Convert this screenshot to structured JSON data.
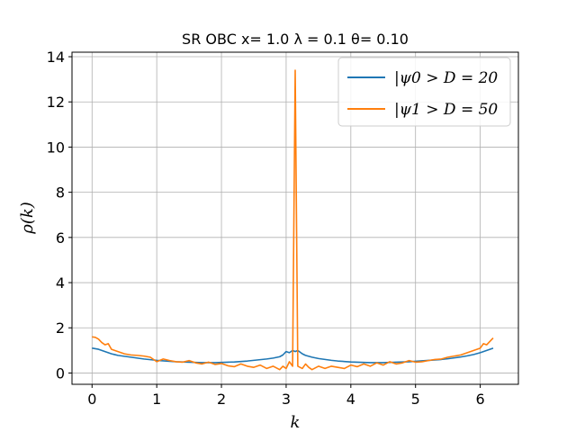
{
  "chart_data": {
    "type": "line",
    "title": "SR OBC x= 1.0 λ = 0.1 θ= 0.10",
    "xlabel": "k",
    "ylabel": "ρ(k)",
    "xlim": [
      -0.31,
      6.59
    ],
    "ylim": [
      -0.5,
      14.2
    ],
    "xticks": [
      0,
      1,
      2,
      3,
      4,
      5,
      6
    ],
    "yticks": [
      0,
      2,
      4,
      6,
      8,
      10,
      12,
      14
    ],
    "grid": true,
    "legend_position": "top-right",
    "series": [
      {
        "name": "|ψ0 > D = 20",
        "color": "#1f77b4",
        "x": [
          0.0,
          0.1,
          0.2,
          0.3,
          0.4,
          0.5,
          0.6,
          0.7,
          0.8,
          0.9,
          1.0,
          1.1,
          1.2,
          1.3,
          1.4,
          1.5,
          1.6,
          1.7,
          1.8,
          1.9,
          2.0,
          2.1,
          2.2,
          2.3,
          2.4,
          2.5,
          2.6,
          2.7,
          2.8,
          2.9,
          2.95,
          3.0,
          3.05,
          3.1,
          3.14,
          3.18,
          3.25,
          3.3,
          3.4,
          3.5,
          3.6,
          3.7,
          3.8,
          3.9,
          4.0,
          4.1,
          4.2,
          4.3,
          4.4,
          4.5,
          4.6,
          4.7,
          4.8,
          4.9,
          5.0,
          5.1,
          5.2,
          5.3,
          5.4,
          5.5,
          5.6,
          5.7,
          5.8,
          5.9,
          6.0,
          6.1,
          6.2
        ],
        "y": [
          1.1,
          1.05,
          0.95,
          0.85,
          0.78,
          0.74,
          0.7,
          0.66,
          0.62,
          0.59,
          0.56,
          0.54,
          0.52,
          0.5,
          0.49,
          0.48,
          0.47,
          0.46,
          0.46,
          0.46,
          0.47,
          0.48,
          0.49,
          0.51,
          0.53,
          0.56,
          0.59,
          0.62,
          0.66,
          0.72,
          0.8,
          0.95,
          0.9,
          1.0,
          0.95,
          1.0,
          0.85,
          0.78,
          0.7,
          0.64,
          0.6,
          0.56,
          0.53,
          0.51,
          0.49,
          0.48,
          0.47,
          0.46,
          0.46,
          0.46,
          0.47,
          0.48,
          0.49,
          0.5,
          0.52,
          0.54,
          0.56,
          0.58,
          0.6,
          0.63,
          0.67,
          0.71,
          0.76,
          0.82,
          0.9,
          1.0,
          1.1
        ]
      },
      {
        "name": "|ψ1 > D = 50",
        "color": "#ff7f0e",
        "x": [
          0.0,
          0.05,
          0.1,
          0.15,
          0.2,
          0.25,
          0.3,
          0.35,
          0.4,
          0.5,
          0.6,
          0.7,
          0.8,
          0.9,
          1.0,
          1.1,
          1.2,
          1.3,
          1.4,
          1.5,
          1.6,
          1.7,
          1.8,
          1.9,
          2.0,
          2.1,
          2.2,
          2.3,
          2.4,
          2.5,
          2.6,
          2.7,
          2.8,
          2.9,
          2.95,
          3.0,
          3.05,
          3.1,
          3.14,
          3.18,
          3.25,
          3.3,
          3.35,
          3.4,
          3.5,
          3.6,
          3.7,
          3.8,
          3.9,
          4.0,
          4.1,
          4.2,
          4.3,
          4.4,
          4.5,
          4.6,
          4.7,
          4.8,
          4.9,
          5.0,
          5.1,
          5.2,
          5.3,
          5.4,
          5.5,
          5.6,
          5.7,
          5.8,
          5.9,
          6.0,
          6.05,
          6.1,
          6.15,
          6.2
        ],
        "y": [
          1.6,
          1.58,
          1.5,
          1.35,
          1.25,
          1.3,
          1.05,
          1.0,
          0.95,
          0.85,
          0.8,
          0.78,
          0.75,
          0.7,
          0.5,
          0.62,
          0.55,
          0.5,
          0.48,
          0.55,
          0.45,
          0.4,
          0.48,
          0.38,
          0.42,
          0.32,
          0.28,
          0.4,
          0.3,
          0.25,
          0.35,
          0.2,
          0.3,
          0.15,
          0.3,
          0.2,
          0.5,
          0.3,
          13.4,
          0.3,
          0.2,
          0.4,
          0.25,
          0.15,
          0.3,
          0.2,
          0.3,
          0.25,
          0.2,
          0.35,
          0.28,
          0.4,
          0.3,
          0.45,
          0.35,
          0.5,
          0.4,
          0.45,
          0.55,
          0.48,
          0.5,
          0.55,
          0.6,
          0.62,
          0.7,
          0.75,
          0.8,
          0.9,
          1.0,
          1.1,
          1.3,
          1.25,
          1.4,
          1.55
        ]
      }
    ]
  }
}
